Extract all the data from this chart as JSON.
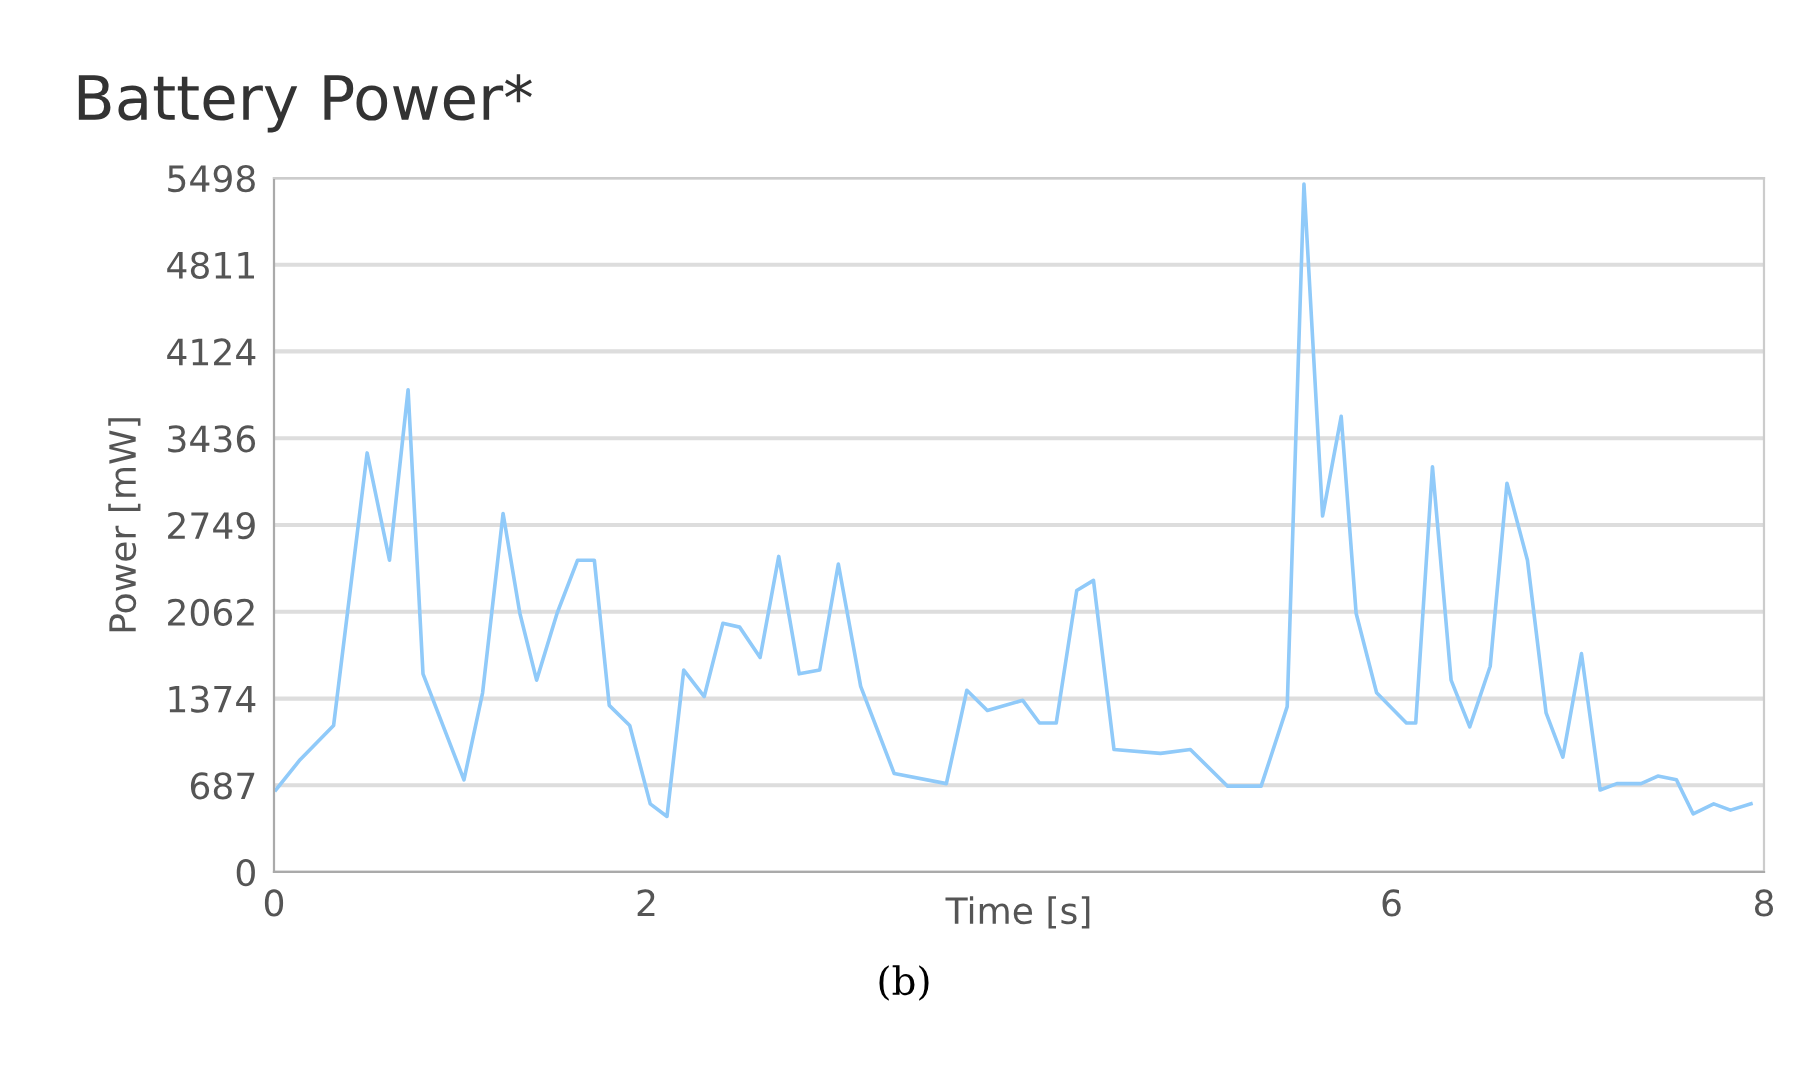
{
  "chart_data": {
    "type": "line",
    "title": "Battery Power*",
    "xlabel": "Time [s]",
    "ylabel": "Power [mW]",
    "annotations": [
      "(b)"
    ],
    "x": [
      0.01,
      0.14,
      0.32,
      0.5,
      0.62,
      0.72,
      0.8,
      1.02,
      1.12,
      1.23,
      1.32,
      1.41,
      1.52,
      1.63,
      1.72,
      1.8,
      1.91,
      2.02,
      2.11,
      2.2,
      2.31,
      2.41,
      2.5,
      2.61,
      2.71,
      2.82,
      2.93,
      3.03,
      3.15,
      3.33,
      3.61,
      3.72,
      3.83,
      4.02,
      4.11,
      4.2,
      4.31,
      4.4,
      4.51,
      4.76,
      4.92,
      5.12,
      5.3,
      5.44,
      5.53,
      5.63,
      5.73,
      5.81,
      5.92,
      6.08,
      6.13,
      6.22,
      6.32,
      6.42,
      6.53,
      6.62,
      6.73,
      6.83,
      6.92,
      7.02,
      7.12,
      7.21,
      7.34,
      7.43,
      7.53,
      7.62,
      7.73,
      7.82,
      7.93
    ],
    "series": [
      {
        "color": "#90caf9",
        "values": [
          650,
          890,
          1160,
          3320,
          2470,
          3820,
          1570,
          730,
          1420,
          2840,
          2050,
          1520,
          2050,
          2470,
          2470,
          1320,
          1160,
          540,
          440,
          1600,
          1390,
          1970,
          1940,
          1700,
          2500,
          1570,
          1600,
          2440,
          1470,
          780,
          700,
          1440,
          1280,
          1360,
          1180,
          1180,
          2230,
          2310,
          970,
          940,
          970,
          680,
          680,
          1310,
          5450,
          2820,
          3610,
          2050,
          1420,
          1180,
          1180,
          3210,
          1520,
          1150,
          1630,
          3080,
          2470,
          1260,
          910,
          1730,
          650,
          700,
          700,
          760,
          730,
          460,
          540,
          490,
          540
        ]
      }
    ],
    "xlim": [
      0,
      8
    ],
    "xticks": [
      0,
      2,
      6,
      8
    ],
    "ylim": [
      0,
      5498
    ],
    "yticks": [
      0,
      687,
      1374,
      2062,
      2749,
      3436,
      4124,
      4811,
      5498
    ],
    "grid": "y",
    "line_style": "solid"
  }
}
